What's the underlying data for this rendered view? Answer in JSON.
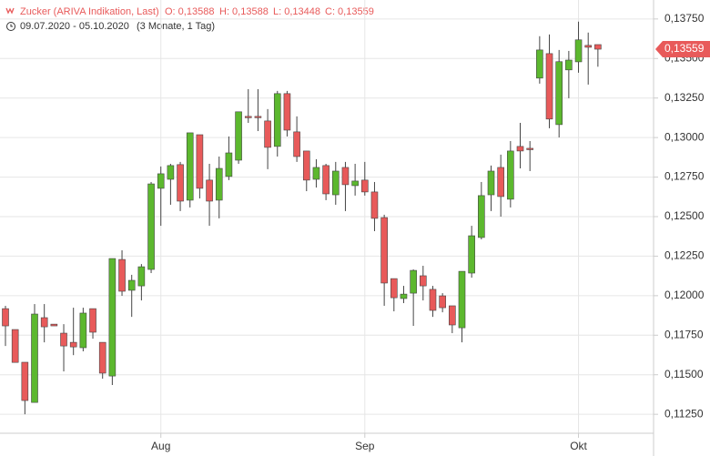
{
  "chart_data": {
    "type": "candlestick",
    "header": {
      "title": "Zucker (ARIVA Indikation, Last)",
      "ohlc": [
        "O: 0,13588",
        "H: 0,13588",
        "L: 0,13448",
        "C: 0,13559"
      ],
      "range": "09.07.2020 - 05.10.2020",
      "period": "(3 Monate, 1 Tag)"
    },
    "categories": [
      null,
      null,
      null,
      null,
      null,
      null,
      null,
      null,
      null,
      null,
      null,
      null,
      null,
      null,
      null,
      null,
      "Aug",
      null,
      null,
      null,
      null,
      null,
      null,
      null,
      null,
      null,
      null,
      null,
      null,
      null,
      null,
      null,
      null,
      null,
      null,
      null,
      null,
      "Sep",
      null,
      null,
      null,
      null,
      null,
      null,
      null,
      null,
      null,
      null,
      null,
      null,
      null,
      null,
      null,
      null,
      null,
      null,
      null,
      null,
      null,
      "Okt",
      null,
      null
    ],
    "open": [
      0.11918,
      0.11786,
      0.11579,
      0.11325,
      0.11861,
      0.1182,
      0.11763,
      0.11705,
      0.11671,
      0.11918,
      0.11705,
      0.11492,
      0.12229,
      0.12034,
      0.12062,
      0.12166,
      0.12679,
      0.12736,
      0.12829,
      0.12604,
      0.13018,
      0.12731,
      0.12604,
      0.12754,
      0.12857,
      0.13134,
      0.13134,
      0.13105,
      0.12944,
      0.13278,
      0.13036,
      0.12915,
      0.12736,
      0.12823,
      0.12638,
      0.12811,
      0.12696,
      0.12731,
      0.12656,
      0.12494,
      0.12108,
      0.11982,
      0.12016,
      0.12126,
      0.1204,
      0.11999,
      0.11936,
      0.11797,
      0.12143,
      0.12368,
      0.12638,
      0.12811,
      0.1261,
      0.12944,
      0.12932,
      0.13376,
      0.13531,
      0.13082,
      0.13428,
      0.13479,
      0.13583,
      0.13588
    ],
    "high": [
      0.11936,
      0.11786,
      0.11579,
      0.11947,
      0.11947,
      0.1182,
      0.1182,
      0.11924,
      0.11924,
      0.11918,
      0.11705,
      0.12235,
      0.12287,
      0.12132,
      0.122,
      0.12719,
      0.12817,
      0.12834,
      0.12846,
      0.1303,
      0.13018,
      0.12834,
      0.1288,
      0.13007,
      0.13163,
      0.13306,
      0.13306,
      0.1318,
      0.13295,
      0.13295,
      0.13134,
      0.12915,
      0.12863,
      0.12834,
      0.12846,
      0.12846,
      0.12834,
      0.12846,
      0.12719,
      0.12512,
      0.12108,
      0.12062,
      0.12166,
      0.12189,
      0.12062,
      0.12016,
      0.11936,
      0.12154,
      0.12442,
      0.12719,
      0.12823,
      0.12892,
      0.12978,
      0.13093,
      0.12978,
      0.13641,
      0.13652,
      0.13554,
      0.13548,
      0.13733,
      0.13664,
      0.13588
    ],
    "low": [
      0.11682,
      0.11579,
      0.1125,
      0.11325,
      0.11705,
      0.11809,
      0.11521,
      0.11624,
      0.11648,
      0.11728,
      0.11475,
      0.11435,
      0.11999,
      0.11866,
      0.1197,
      0.12143,
      0.12442,
      0.12575,
      0.12535,
      0.12558,
      0.12615,
      0.12442,
      0.12489,
      0.12731,
      0.12834,
      0.13093,
      0.13041,
      0.128,
      0.1288,
      0.13007,
      0.12846,
      0.12661,
      0.12684,
      0.12604,
      0.12575,
      0.12535,
      0.12633,
      0.12633,
      0.12408,
      0.11936,
      0.11901,
      0.11953,
      0.11809,
      0.1197,
      0.11866,
      0.11895,
      0.11763,
      0.11705,
      0.12114,
      0.12356,
      0.12535,
      0.125,
      0.12558,
      0.12805,
      0.12788,
      0.13341,
      0.13059,
      0.13001,
      0.13249,
      0.1341,
      0.13335,
      0.13448
    ],
    "close": [
      0.11809,
      0.11578,
      0.11337,
      0.11884,
      0.11803,
      0.11809,
      0.11682,
      0.11676,
      0.1189,
      0.11769,
      0.1151,
      0.12235,
      0.12028,
      0.12097,
      0.12183,
      0.12707,
      0.12771,
      0.12823,
      0.12598,
      0.1303,
      0.12679,
      0.12598,
      0.12805,
      0.12903,
      0.13163,
      0.13128,
      0.13128,
      0.12938,
      0.13278,
      0.13047,
      0.1288,
      0.12731,
      0.12811,
      0.12644,
      0.12788,
      0.12702,
      0.12725,
      0.12656,
      0.12489,
      0.1208,
      0.11987,
      0.1201,
      0.1216,
      0.12062,
      0.11907,
      0.11924,
      0.11815,
      0.12154,
      0.12379,
      0.12633,
      0.12788,
      0.12627,
      0.12915,
      0.12915,
      0.12926,
      0.13554,
      0.13117,
      0.1348,
      0.1349,
      0.13618,
      0.13571,
      0.13559
    ],
    "up_color": "#5cb82e",
    "down_color": "#e85a5a",
    "ylim": [
      0.1113,
      0.1387
    ],
    "yticks": [
      {
        "value": 0.1125,
        "label": "0,11250"
      },
      {
        "value": 0.115,
        "label": "0,11500"
      },
      {
        "value": 0.1175,
        "label": "0,11750"
      },
      {
        "value": 0.12,
        "label": "0,12000"
      },
      {
        "value": 0.1225,
        "label": "0,12250"
      },
      {
        "value": 0.125,
        "label": "0,12500"
      },
      {
        "value": 0.1275,
        "label": "0,12750"
      },
      {
        "value": 0.13,
        "label": "0,13000"
      },
      {
        "value": 0.1325,
        "label": "0,13250"
      },
      {
        "value": 0.135,
        "label": "0,13500"
      },
      {
        "value": 0.1375,
        "label": "0,13750"
      }
    ],
    "last_price": {
      "value": 0.13559,
      "label": "0,13559"
    },
    "grid": true
  }
}
